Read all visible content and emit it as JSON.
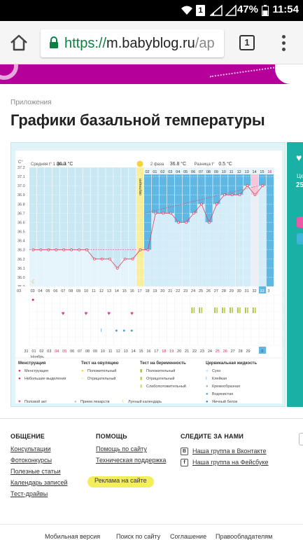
{
  "statusbar": {
    "battery": "47%",
    "time": "11:54",
    "sim": "1"
  },
  "browser": {
    "url_proto": "https://",
    "url_domain": "m.babyblog.ru",
    "url_rest": "/ap",
    "tabs_count": "1"
  },
  "breadcrumb": "Приложения",
  "title": "Графики базальной температуры",
  "chart_data": {
    "type": "bar",
    "phase1_label": "Средняя t° 1 фаза",
    "phase1_value": "36.3 °C",
    "phase2_label": "2 фаза",
    "phase2_value": "36.8 °C",
    "diff_label": "Разница t°",
    "diff_value": "0.5 °C",
    "ylabel": "С°",
    "ylim": [
      35.9,
      37.2
    ],
    "yticks": [
      "37.2",
      "37.1",
      "37.0",
      "36.9",
      "36.8",
      "36.7",
      "36.6",
      "36.5",
      "36.4",
      "36.3",
      "36.2",
      "36.1",
      "36.0",
      "35.9"
    ],
    "ovulation_label": "овуляция",
    "cycle_days": [
      "03",
      "04",
      "05",
      "06",
      "07",
      "08",
      "09",
      "10",
      "11",
      "12",
      "13",
      "14",
      "15",
      "16",
      "17",
      "18",
      "19",
      "20",
      "21",
      "22",
      "23",
      "24",
      "25",
      "26",
      "27",
      "28",
      "29",
      "30",
      "31",
      "32",
      "33",
      "3"
    ],
    "phase2_days": [
      "02",
      "01",
      "02",
      "03",
      "04",
      "05",
      "06",
      "07",
      "08",
      "09",
      "10",
      "11",
      "12",
      "13",
      "14",
      "15",
      "16"
    ],
    "date_days": [
      "31",
      "01",
      "02",
      "03",
      "04",
      "05",
      "06",
      "07",
      "08",
      "09",
      "10",
      "11",
      "12",
      "13",
      "14",
      "15",
      "16",
      "17",
      "18",
      "19",
      "20",
      "21",
      "22",
      "23",
      "24",
      "25",
      "26",
      "27",
      "28",
      "29",
      "30",
      "0"
    ],
    "month_label": "Ноябрь",
    "values": [
      36.3,
      36.3,
      36.3,
      36.3,
      36.3,
      36.3,
      36.3,
      36.3,
      36.2,
      36.2,
      36.2,
      36.1,
      36.2,
      36.2,
      36.3,
      36.3,
      36.7,
      36.7,
      36.7,
      36.6,
      36.6,
      36.7,
      36.8,
      36.6,
      36.8,
      36.9,
      36.9,
      36.9,
      37.0,
      36.9,
      37.0
    ]
  },
  "legend": {
    "menstruation_title": "Менструация",
    "menstruation": "Менструация",
    "spotting": "Небольшие выделения",
    "ovulation_test_title": "Тест на овуляцию",
    "positive": "Положительный",
    "negative": "Отрицательный",
    "pregnancy_test_title": "Тест на беременность",
    "preg_positive": "Положительный",
    "preg_negative": "Отрицательный",
    "preg_weak": "Слабоположительный",
    "cervical_title": "Цервикальная жидкость",
    "dry": "Сухо",
    "sticky": "Клейкая",
    "creamy": "Кремообразная",
    "watery": "Водянистая",
    "eggwhite": "Яичный белок",
    "intercourse": "Половой акт",
    "medication": "Прием лекарств",
    "lunar": "Лунный календарь"
  },
  "right_panel": {
    "label": "Це",
    "value": "25"
  },
  "footer": {
    "col1_title": "ОБЩЕНИЕ",
    "col1": [
      "Консультации",
      "Фотоконкурсы",
      "Полезные статьи",
      "Календарь записей",
      "Тест-драйвы"
    ],
    "col2_title": "ПОМОЩЬ",
    "col2": [
      "Помощь по сайту",
      "Техническая поддержка",
      "Реклама на сайте"
    ],
    "col3_title": "СЛЕДИТЕ ЗА НАМИ",
    "vk": "Наша группа в Вконтакте",
    "fb": "Наша группа на Фейсбуке",
    "bottom": [
      "Мобильная версия",
      "Поиск по сайту",
      "Соглашение",
      "Правообладателям"
    ]
  }
}
